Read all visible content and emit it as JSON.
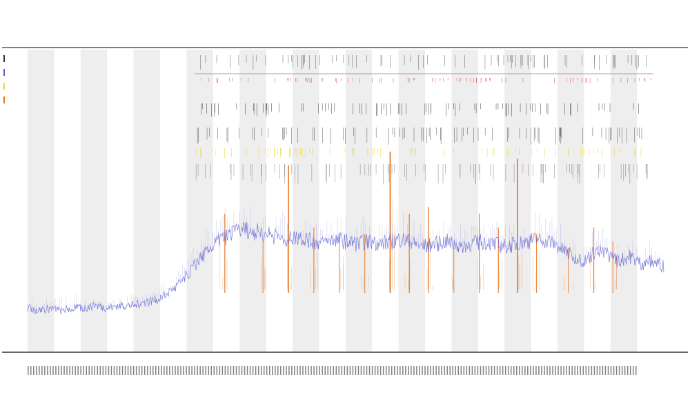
{
  "chart_data": {
    "type": "line",
    "title": "",
    "subtitle_lines": [
      "",
      ""
    ],
    "xlabel": "",
    "ylabel": "",
    "grid": false,
    "legend_position": "left",
    "colors": {
      "primary_series": "#5b5bd6",
      "event_series": "#e8741c",
      "event_marks_red": "#e23b3b",
      "event_marks_yellow": "#e6d84a",
      "event_marks_gray": "#555555",
      "band": "#eeeeee",
      "axis": "#333333"
    },
    "series": [
      {
        "name": "",
        "color": "#5b5bd6",
        "values": [
          0.12,
          0.11,
          0.12,
          0.11,
          0.12,
          0.12,
          0.13,
          0.12,
          0.13,
          0.13,
          0.14,
          0.15,
          0.17,
          0.2,
          0.25,
          0.31,
          0.36,
          0.4,
          0.42,
          0.44,
          0.43,
          0.42,
          0.41,
          0.4,
          0.41,
          0.39,
          0.38,
          0.4,
          0.39,
          0.38,
          0.39,
          0.38,
          0.39,
          0.4,
          0.38,
          0.37,
          0.38,
          0.39,
          0.37,
          0.38,
          0.39,
          0.38,
          0.37,
          0.38,
          0.39,
          0.4,
          0.39,
          0.36,
          0.33,
          0.31,
          0.35,
          0.34,
          0.31,
          0.33,
          0.3,
          0.31,
          0.29
        ]
      }
    ],
    "event_spikes": {
      "color": "#e8741c",
      "x_fraction": [
        0.31,
        0.37,
        0.41,
        0.45,
        0.49,
        0.53,
        0.57,
        0.6,
        0.63,
        0.67,
        0.71,
        0.74,
        0.77,
        0.8,
        0.85,
        0.89,
        0.92
      ],
      "height": [
        0.55,
        0.35,
        0.9,
        0.45,
        0.35,
        0.4,
        1.0,
        0.55,
        0.6,
        0.3,
        0.55,
        0.45,
        0.95,
        0.4,
        0.3,
        0.45,
        0.35
      ]
    },
    "x_tick_count": 220,
    "alternating_band_count": 12
  },
  "legend": {
    "entries": [
      {
        "label": "",
        "color": "#333333"
      },
      {
        "label": "",
        "color": "#5b5bd6"
      },
      {
        "label": "",
        "color": "#e6d84a"
      },
      {
        "label": "",
        "color": "#e8741c"
      }
    ]
  }
}
